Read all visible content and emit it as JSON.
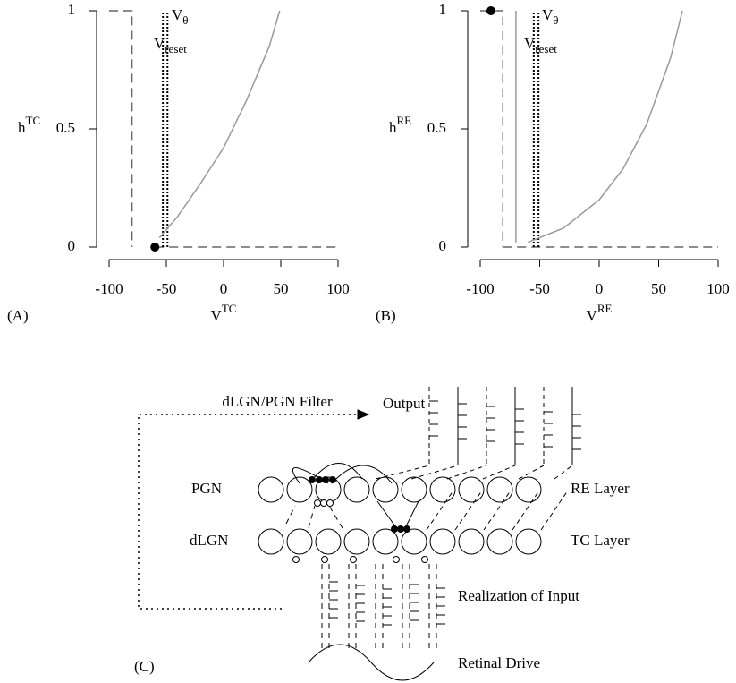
{
  "chart_data": [
    {
      "type": "line",
      "panel": "(A)",
      "xlabel": "V",
      "xlabel_sup": "TC",
      "ylabel": "h",
      "ylabel_sup": "TC",
      "xlim": [
        -100,
        100
      ],
      "xticks": [
        -100,
        -50,
        0,
        50,
        100
      ],
      "ylim": [
        0,
        1
      ],
      "yticks": [
        0,
        0.5,
        1
      ],
      "annotations": [
        {
          "text": "V",
          "sub": "θ"
        },
        {
          "text": "V",
          "sub": "reset"
        }
      ],
      "series": [
        {
          "style": "dashed",
          "color": "#666666",
          "x": [
            -100,
            -80,
            -80,
            -80
          ],
          "values": [
            1,
            1,
            1,
            0
          ]
        },
        {
          "style": "dashed",
          "color": "#666666",
          "x": [
            -60,
            100
          ],
          "values": [
            0,
            0
          ]
        },
        {
          "style": "dotted",
          "color": "#000000",
          "x": [
            -53,
            -53
          ],
          "values": [
            0,
            1
          ]
        },
        {
          "style": "dotted",
          "color": "#000000",
          "x": [
            -49,
            -49
          ],
          "values": [
            0,
            1
          ]
        },
        {
          "style": "solid",
          "color": "#999999",
          "x": [
            -56,
            -40,
            -20,
            0,
            20,
            40,
            49
          ],
          "values": [
            0.04,
            0.13,
            0.27,
            0.42,
            0.62,
            0.85,
            1
          ]
        }
      ],
      "points": {
        "color": "#000000",
        "x": [
          -60
        ],
        "values": [
          0
        ]
      }
    },
    {
      "type": "line",
      "panel": "(B)",
      "xlabel": "V",
      "xlabel_sup": "RE",
      "ylabel": "h",
      "ylabel_sup": "RE",
      "xlim": [
        -100,
        100
      ],
      "xticks": [
        -100,
        -50,
        0,
        50,
        100
      ],
      "ylim": [
        0,
        1
      ],
      "yticks": [
        0,
        0.5,
        1
      ],
      "annotations": [
        {
          "text": "V",
          "sub": "θ"
        },
        {
          "text": "V",
          "sub": "reset"
        }
      ],
      "series": [
        {
          "style": "dashed",
          "color": "#666666",
          "x": [
            -100,
            -81,
            -81
          ],
          "values": [
            1,
            1,
            0
          ]
        },
        {
          "style": "dashed",
          "color": "#666666",
          "x": [
            -81,
            100
          ],
          "values": [
            0,
            0
          ]
        },
        {
          "style": "solid",
          "color": "#999999",
          "x": [
            -70,
            -70
          ],
          "values": [
            0.02,
            1
          ]
        },
        {
          "style": "dotted",
          "color": "#000000",
          "x": [
            -55,
            -55
          ],
          "values": [
            0,
            1
          ]
        },
        {
          "style": "dotted",
          "color": "#000000",
          "x": [
            -51,
            -51
          ],
          "values": [
            0,
            1
          ]
        },
        {
          "style": "solid",
          "color": "#999999",
          "x": [
            -60,
            -30,
            0,
            20,
            40,
            60,
            70
          ],
          "values": [
            0.02,
            0.08,
            0.2,
            0.33,
            0.52,
            0.8,
            1
          ]
        }
      ],
      "points": {
        "color": "#000000",
        "x": [
          -91
        ],
        "values": [
          1
        ]
      }
    }
  ],
  "diagram": {
    "panel": "(C)",
    "filter": "dLGN/PGN Filter",
    "output": "Output",
    "pgn": "PGN",
    "re_layer": "RE Layer",
    "dlgn": "dLGN",
    "tc_layer": "TC Layer",
    "input": "Realization of Input",
    "retina": "Retinal Drive"
  }
}
